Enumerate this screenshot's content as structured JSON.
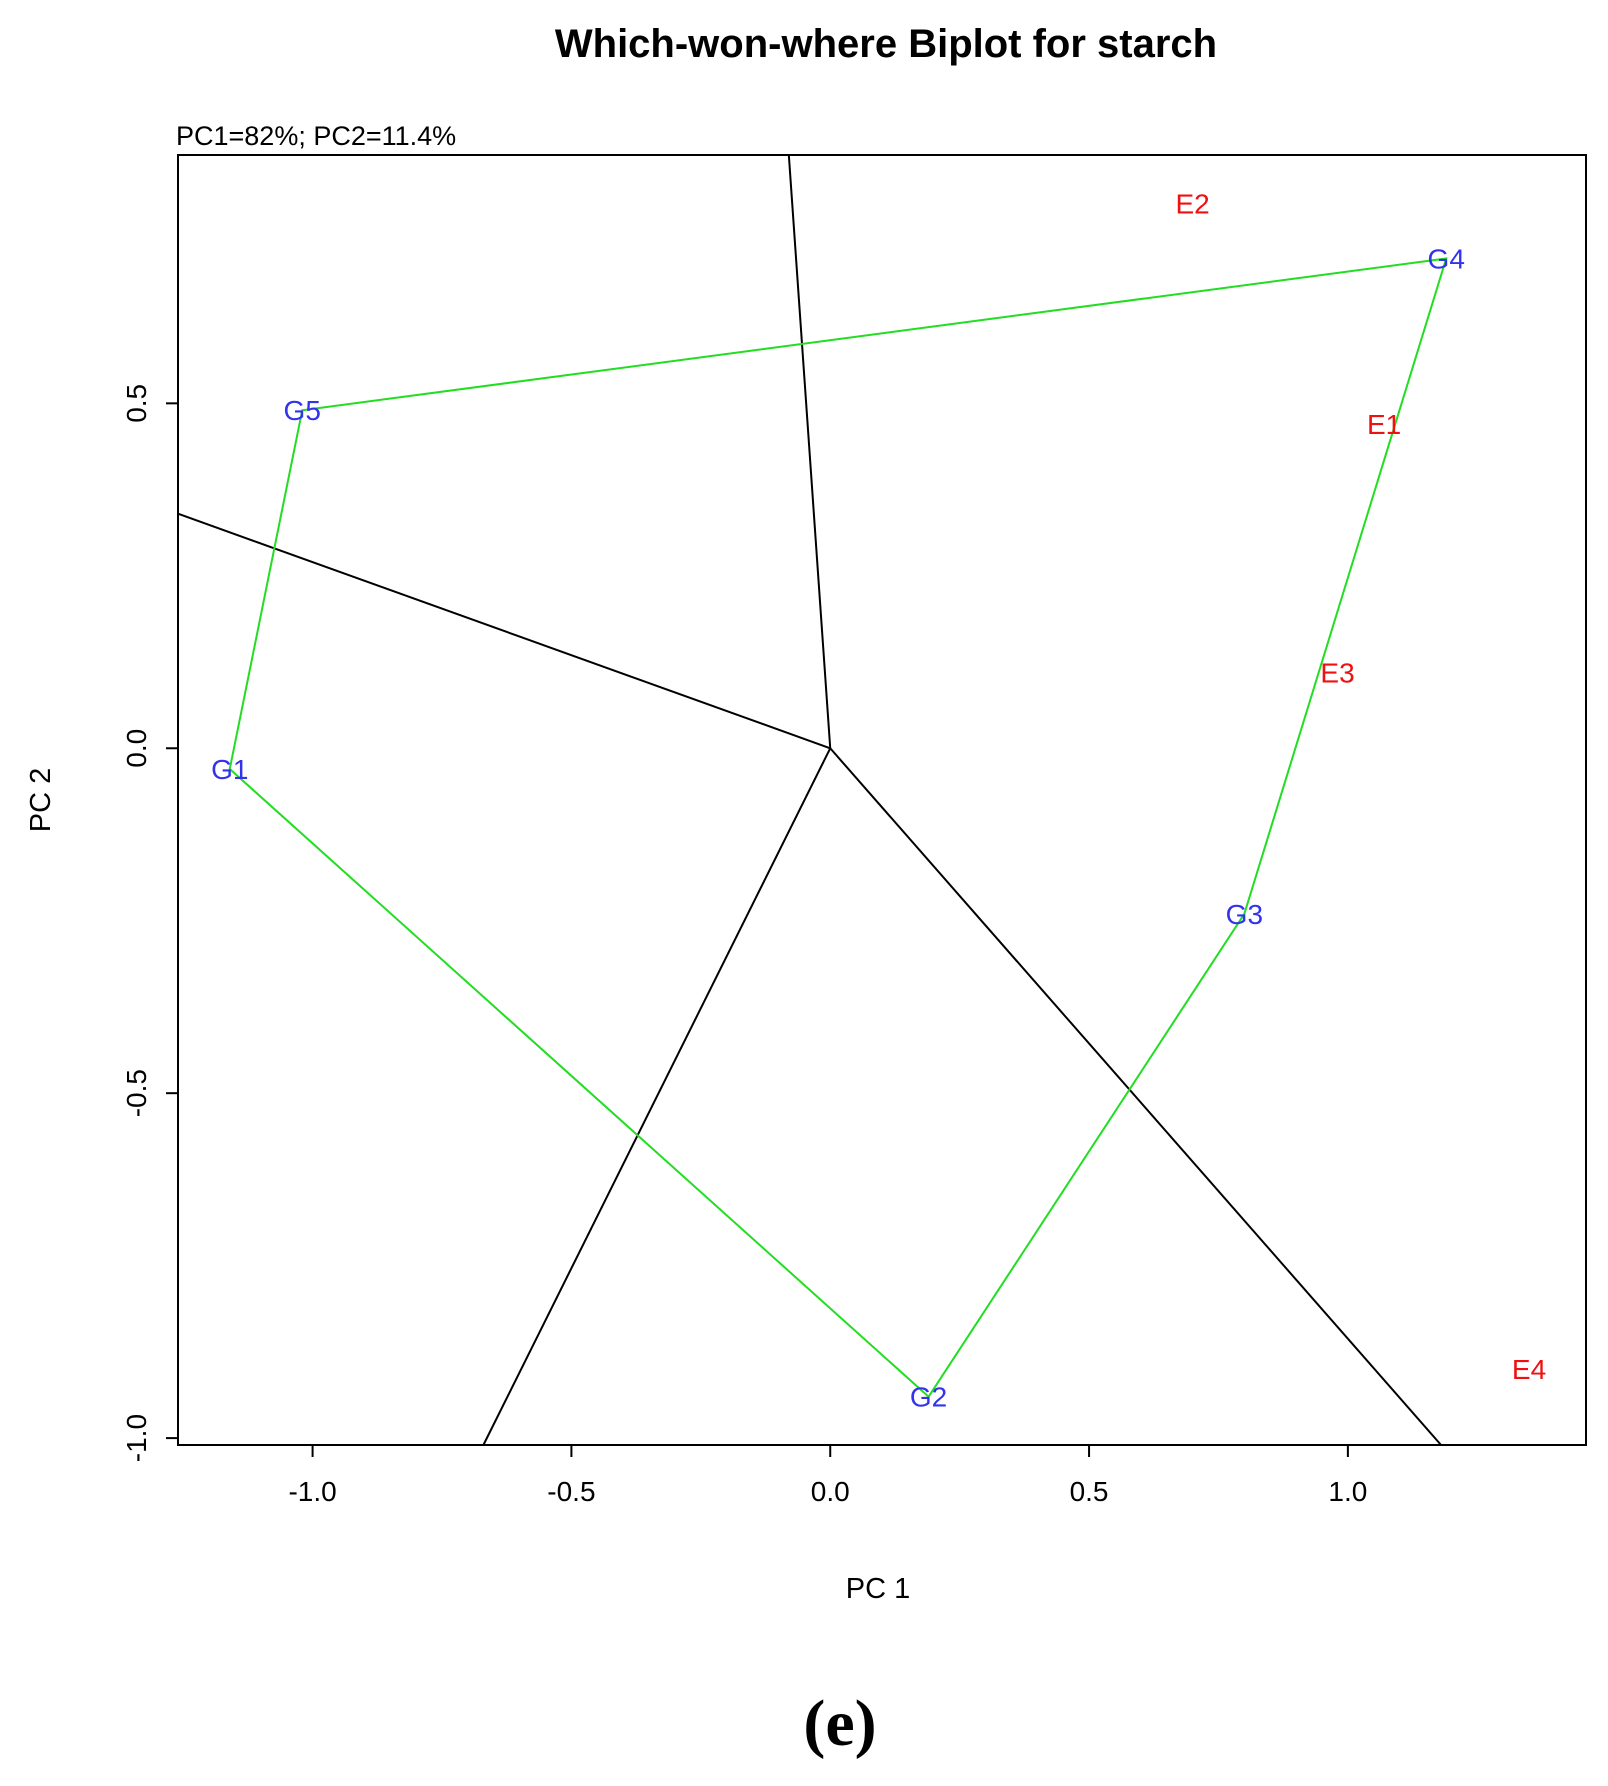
{
  "chart_data": {
    "type": "scatter",
    "title": "Which-won-where Biplot for starch",
    "subtitle": "PC1=82%; PC2=11.4%",
    "xlabel": "PC 1",
    "ylabel": "PC 2",
    "xlim": [
      -1.26,
      1.46
    ],
    "ylim": [
      -1.01,
      0.86
    ],
    "xticks": [
      -1.0,
      -0.5,
      0.0,
      0.5,
      1.0
    ],
    "xtick_labels": [
      "-1.0",
      "-0.5",
      "0.0",
      "0.5",
      "1.0"
    ],
    "yticks": [
      -1.0,
      -0.5,
      0.0,
      0.5
    ],
    "ytick_labels": [
      "-1.0",
      "-0.5",
      "0.0",
      "0.5"
    ],
    "grid": false,
    "genotypes": [
      {
        "label": "G1",
        "x": -1.16,
        "y": -0.03
      },
      {
        "label": "G2",
        "x": 0.19,
        "y": -0.94
      },
      {
        "label": "G3",
        "x": 0.8,
        "y": -0.24
      },
      {
        "label": "G4",
        "x": 1.19,
        "y": 0.71
      },
      {
        "label": "G5",
        "x": -1.02,
        "y": 0.49
      }
    ],
    "environments": [
      {
        "label": "E1",
        "x": 1.07,
        "y": 0.47
      },
      {
        "label": "E2",
        "x": 0.7,
        "y": 0.79
      },
      {
        "label": "E3",
        "x": 0.98,
        "y": 0.11
      },
      {
        "label": "E4",
        "x": 1.35,
        "y": -0.9
      }
    ],
    "polygon_order": [
      "G1",
      "G5",
      "G4",
      "G3",
      "G2"
    ],
    "sector_rays": [
      {
        "x": -0.08,
        "y": 0.86
      },
      {
        "x": -1.26,
        "y": 0.34
      },
      {
        "x": -0.67,
        "y": -1.01
      },
      {
        "x": 1.18,
        "y": -1.01
      }
    ],
    "colors": {
      "genotype": "#3333ee",
      "environment": "#ee1111",
      "polygon": "#22dd22",
      "rays": "#000000"
    }
  },
  "panel_label": "(e)"
}
